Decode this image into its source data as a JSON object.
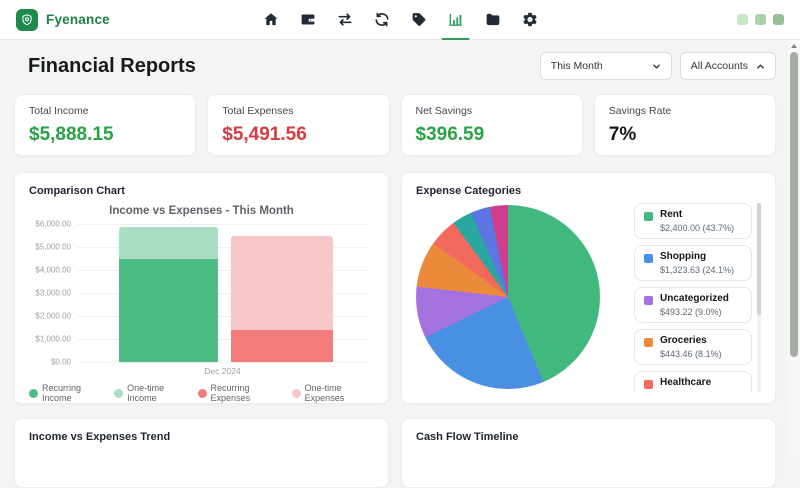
{
  "navbar": {
    "brand": "Fyenance",
    "icons": [
      "home",
      "wallet",
      "transfers",
      "sync",
      "tags",
      "reports",
      "files",
      "settings"
    ],
    "active_icon": "reports",
    "window_controls": [
      "#c7e5c8",
      "#abd1ab",
      "#95bf96"
    ]
  },
  "header": {
    "title": "Financial Reports",
    "period_select": "This Month",
    "accounts_filter": "All Accounts"
  },
  "stats": [
    {
      "label": "Total Income",
      "value": "$5,888.15",
      "color": "#27a346"
    },
    {
      "label": "Total Expenses",
      "value": "$5,491.56",
      "color": "#d93a3d"
    },
    {
      "label": "Net Savings",
      "value": "$396.59",
      "color": "#27a346"
    },
    {
      "label": "Savings Rate",
      "value": "7%",
      "color": "#15181c"
    }
  ],
  "cards": {
    "comparison": {
      "title": "Comparison Chart"
    },
    "expense_categories": {
      "title": "Expense Categories",
      "legend": [
        {
          "label": "Rent",
          "detail": "$2,400.00 (43.7%)",
          "color": "#41b87d"
        },
        {
          "label": "Shopping",
          "detail": "$1,323.63 (24.1%)",
          "color": "#4a90e2"
        },
        {
          "label": "Uncategorized",
          "detail": "$493.22 (9.0%)",
          "color": "#a472df"
        },
        {
          "label": "Groceries",
          "detail": "$443.46 (8.1%)",
          "color": "#ea8a3a"
        },
        {
          "label": "Healthcare",
          "detail": "",
          "color": "#f26a5e"
        }
      ]
    },
    "trend": {
      "title": "Income vs Expenses Trend"
    },
    "cashflow": {
      "title": "Cash Flow Timeline"
    }
  },
  "chart_data": [
    {
      "type": "bar",
      "stacked": true,
      "title": "Income vs Expenses - This Month",
      "categories": [
        "Dec 2024"
      ],
      "series": [
        {
          "name": "Recurring Income",
          "stack": "income",
          "values": [
            4500
          ],
          "color": "#4dbd85"
        },
        {
          "name": "One-time Income",
          "stack": "income",
          "values": [
            1388.15
          ],
          "color": "#a9dec3"
        },
        {
          "name": "Recurring Expenses",
          "stack": "expenses",
          "values": [
            1400
          ],
          "color": "#f17c79"
        },
        {
          "name": "One-time Expenses",
          "stack": "expenses",
          "values": [
            4091.56
          ],
          "color": "#f7c6c6"
        }
      ],
      "ylim": [
        0,
        6000
      ],
      "y_ticks": [
        "$6,000.00",
        "$5,000.00",
        "$4,000.00",
        "$3,000.00",
        "$2,000.00",
        "$1,000.00",
        "$0.00"
      ],
      "grid": true,
      "legend_position": "bottom"
    },
    {
      "type": "pie",
      "title": "Expense Categories",
      "slices": [
        {
          "label": "Rent",
          "amount": "$2,400.00",
          "pct": 43.7,
          "color": "#41b87d"
        },
        {
          "label": "Shopping",
          "amount": "$1,323.63",
          "pct": 24.1,
          "color": "#4a90e2"
        },
        {
          "label": "Uncategorized",
          "amount": "$493.22",
          "pct": 9.0,
          "color": "#a472df"
        },
        {
          "label": "Groceries",
          "amount": "$443.46",
          "pct": 8.1,
          "color": "#ea8a3a"
        },
        {
          "label": "Healthcare",
          "pct": 5.0,
          "color": "#f26a5e"
        },
        {
          "label": "",
          "pct": 3.5,
          "color": "#2aa79e"
        },
        {
          "label": "",
          "pct": 3.4,
          "color": "#5b76e3"
        },
        {
          "label": "",
          "pct": 3.2,
          "color": "#cf3f8d"
        }
      ]
    }
  ]
}
